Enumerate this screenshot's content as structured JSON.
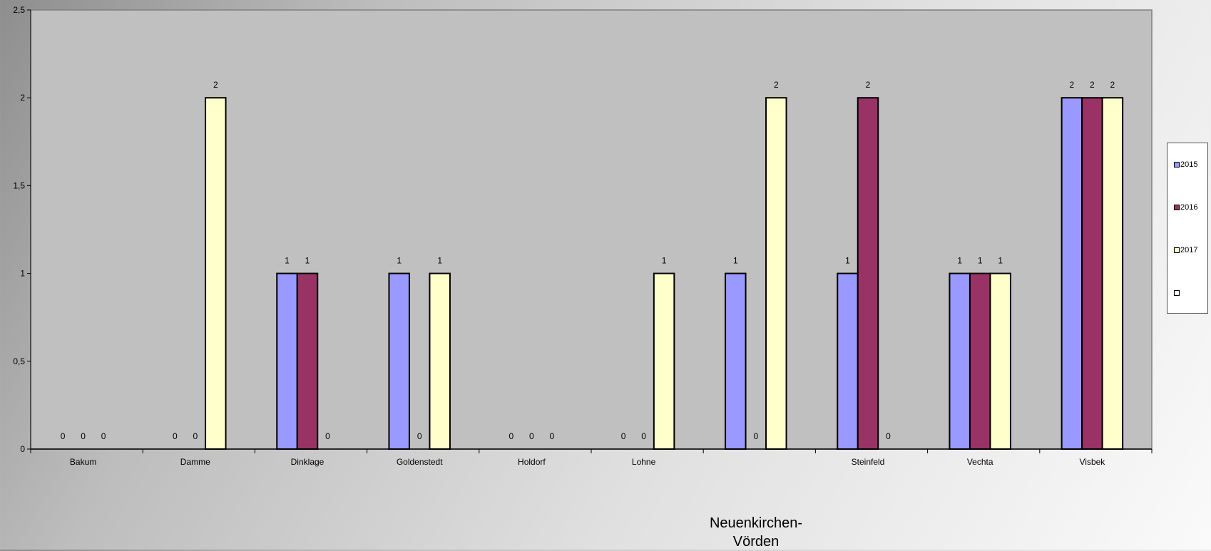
{
  "chart_data": {
    "type": "bar",
    "categories": [
      "Bakum",
      "Damme",
      "Dinklage",
      "Goldenstedt",
      "Holdorf",
      "Lohne",
      "",
      "Steinfeld",
      "Vechta",
      "Visbek"
    ],
    "external_category_label": [
      "Neuenkirchen-",
      "Vörden"
    ],
    "series": [
      {
        "name": "2015",
        "color": "#9999ff",
        "values": [
          0,
          0,
          1,
          1,
          0,
          0,
          1,
          1,
          1,
          2
        ]
      },
      {
        "name": "2016",
        "color": "#993366",
        "values": [
          0,
          0,
          1,
          0,
          0,
          0,
          0,
          2,
          1,
          2
        ]
      },
      {
        "name": "2017",
        "color": "#ffffcc",
        "values": [
          0,
          2,
          0,
          1,
          0,
          1,
          2,
          0,
          1,
          2
        ]
      }
    ],
    "legend_extra_entry": {
      "name": "",
      "color": "#ffffff"
    },
    "ylim": [
      0,
      2.5
    ],
    "yticks": [
      "0",
      "0,5",
      "1",
      "1,5",
      "2",
      "2,5"
    ],
    "ytick_values": [
      0,
      0.5,
      1,
      1.5,
      2,
      2.5
    ],
    "plot_background": "#c0c0c0",
    "legend_position": "right",
    "grid": false,
    "data_labels": true
  }
}
